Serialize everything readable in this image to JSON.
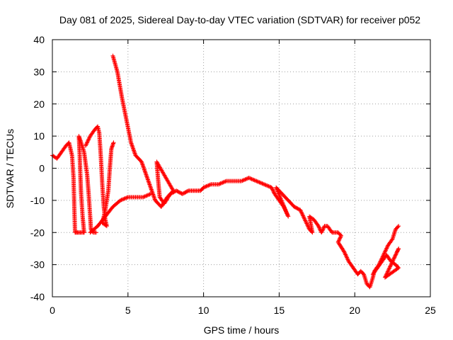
{
  "chart_data": {
    "type": "scatter",
    "title": "Day 081 of 2025, Sidereal Day-to-day VTEC variation (SDTVAR) for receiver p052",
    "xlabel": "GPS time / hours",
    "ylabel": "SDTVAR / TECUs",
    "xlim": [
      0,
      25
    ],
    "ylim": [
      -40,
      40
    ],
    "x_ticks": [
      0,
      5,
      10,
      15,
      20,
      25
    ],
    "y_ticks": [
      -40,
      -30,
      -20,
      -10,
      0,
      10,
      20,
      30,
      40
    ],
    "grid": true,
    "marker": "+",
    "series_color": "#ff0000",
    "series": [
      {
        "name": "SDTVAR",
        "points": [
          [
            0.0,
            4
          ],
          [
            0.3,
            3
          ],
          [
            0.6,
            5
          ],
          [
            0.9,
            7
          ],
          [
            1.1,
            8
          ],
          [
            1.3,
            4
          ],
          [
            1.4,
            -3
          ],
          [
            1.45,
            -12
          ],
          [
            1.5,
            -20
          ],
          [
            1.6,
            -20
          ],
          [
            1.9,
            -20
          ],
          [
            2.1,
            -20
          ],
          [
            2.1,
            -20
          ],
          [
            2.0,
            -15
          ],
          [
            1.9,
            -8
          ],
          [
            1.85,
            -2
          ],
          [
            1.8,
            5
          ],
          [
            1.75,
            10
          ],
          [
            1.9,
            8
          ],
          [
            2.1,
            5
          ],
          [
            2.3,
            -2
          ],
          [
            2.4,
            -8
          ],
          [
            2.5,
            -15
          ],
          [
            2.55,
            -19
          ],
          [
            2.7,
            -20
          ],
          [
            2.9,
            -20
          ],
          [
            2.2,
            7
          ],
          [
            2.5,
            10
          ],
          [
            2.8,
            12
          ],
          [
            3.0,
            13
          ],
          [
            3.1,
            11
          ],
          [
            3.2,
            4
          ],
          [
            3.3,
            -5
          ],
          [
            3.4,
            -12
          ],
          [
            3.5,
            -16
          ],
          [
            3.6,
            -18
          ],
          [
            3.3,
            -17
          ],
          [
            3.5,
            -13
          ],
          [
            3.7,
            -7
          ],
          [
            3.8,
            0
          ],
          [
            3.9,
            6
          ],
          [
            4.05,
            8
          ],
          [
            2.5,
            -20
          ],
          [
            3.0,
            -18
          ],
          [
            3.5,
            -15
          ],
          [
            4.0,
            -12
          ],
          [
            4.5,
            -10
          ],
          [
            5.0,
            -9
          ],
          [
            5.5,
            -9
          ],
          [
            6.0,
            -9
          ],
          [
            6.5,
            -8
          ],
          [
            4.0,
            35
          ],
          [
            4.3,
            30
          ],
          [
            4.6,
            22
          ],
          [
            4.9,
            15
          ],
          [
            5.2,
            8
          ],
          [
            5.5,
            4
          ],
          [
            5.7,
            3
          ],
          [
            5.9,
            2
          ],
          [
            6.2,
            -2
          ],
          [
            6.5,
            -6
          ],
          [
            6.8,
            -10
          ],
          [
            7.2,
            -12
          ],
          [
            7.6,
            -9
          ],
          [
            8.0,
            -7
          ],
          [
            6.9,
            2
          ],
          [
            7.0,
            -4
          ],
          [
            7.1,
            -9
          ],
          [
            7.4,
            -11
          ],
          [
            7.8,
            -8
          ],
          [
            8.2,
            -7
          ],
          [
            8.6,
            -8
          ],
          [
            9.0,
            -7
          ],
          [
            9.4,
            -7
          ],
          [
            9.8,
            -7
          ],
          [
            10.0,
            -6
          ],
          [
            10.5,
            -5
          ],
          [
            11.0,
            -5
          ],
          [
            11.5,
            -4
          ],
          [
            12.0,
            -4
          ],
          [
            12.5,
            -4
          ],
          [
            13.0,
            -3
          ],
          [
            13.5,
            -4
          ],
          [
            14.0,
            -5
          ],
          [
            14.5,
            -6
          ],
          [
            14.7,
            -8
          ],
          [
            15.0,
            -10
          ],
          [
            15.3,
            -12
          ],
          [
            15.6,
            -15
          ],
          [
            14.8,
            -6
          ],
          [
            15.2,
            -8
          ],
          [
            15.6,
            -10
          ],
          [
            16.0,
            -12
          ],
          [
            16.4,
            -13
          ],
          [
            16.7,
            -16
          ],
          [
            17.0,
            -19
          ],
          [
            17.2,
            -20
          ],
          [
            17.0,
            -15
          ],
          [
            17.3,
            -16
          ],
          [
            17.6,
            -18
          ],
          [
            17.8,
            -20
          ],
          [
            18.0,
            -18
          ],
          [
            18.2,
            -18
          ],
          [
            18.5,
            -20
          ],
          [
            18.9,
            -20
          ],
          [
            19.1,
            -21
          ],
          [
            18.9,
            -23
          ],
          [
            19.3,
            -26
          ],
          [
            19.6,
            -29
          ],
          [
            19.9,
            -31
          ],
          [
            20.2,
            -33
          ],
          [
            20.4,
            -32
          ],
          [
            20.6,
            -33
          ],
          [
            20.8,
            -36
          ],
          [
            21.0,
            -37
          ],
          [
            21.2,
            -34
          ],
          [
            21.3,
            -32
          ],
          [
            21.6,
            -30
          ],
          [
            21.9,
            -27
          ],
          [
            22.2,
            -24
          ],
          [
            22.5,
            -22
          ],
          [
            22.7,
            -19
          ],
          [
            22.9,
            -18
          ],
          [
            21.2,
            -33
          ],
          [
            21.5,
            -31
          ],
          [
            21.8,
            -29
          ],
          [
            22.1,
            -27
          ],
          [
            22.4,
            -29
          ],
          [
            22.7,
            -30
          ],
          [
            22.9,
            -31
          ],
          [
            22.0,
            -34
          ],
          [
            22.3,
            -31
          ],
          [
            22.6,
            -28
          ],
          [
            22.8,
            -26
          ],
          [
            22.9,
            -25
          ]
        ]
      }
    ]
  }
}
